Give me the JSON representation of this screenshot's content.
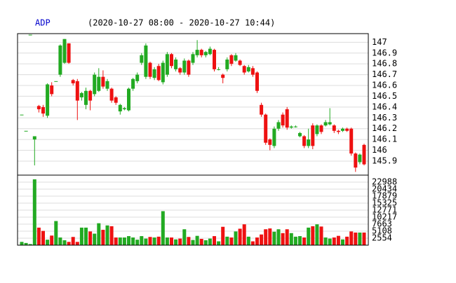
{
  "chart_data": {
    "type": "candlestick",
    "title": "ADP",
    "subtitle": "(2020-10-27 08:00 - 2020-10-27 10:44)",
    "open": [
      146.33,
      146.18,
      147.07,
      146.1,
      146.41,
      146.4,
      146.32,
      146.6,
      146.64,
      146.7,
      146.81,
      146.99,
      146.65,
      146.64,
      146.49,
      146.42,
      146.55,
      146.52,
      146.55,
      146.68,
      146.57,
      146.57,
      146.49,
      146.36,
      146.38,
      146.37,
      146.57,
      146.64,
      146.81,
      146.68,
      146.81,
      146.67,
      146.78,
      146.63,
      146.7,
      146.89,
      146.75,
      146.76,
      146.72,
      146.83,
      146.81,
      146.88,
      146.93,
      146.88,
      146.89,
      146.93,
      146.75,
      146.7,
      146.75,
      146.88,
      146.83,
      146.83,
      146.78,
      146.73,
      146.76,
      146.72,
      146.42,
      146.33,
      146.1,
      146.04,
      146.2,
      146.33,
      146.38,
      146.21,
      146.22,
      146.13,
      146.13,
      146.04,
      146.23,
      146.15,
      146.23,
      146.23,
      146.24,
      146.23,
      146.18,
      146.18,
      146.2,
      146.2,
      145.97,
      145.89,
      146.05
    ],
    "high": [
      146.33,
      146.18,
      147.07,
      146.13,
      146.42,
      146.42,
      146.62,
      146.63,
      146.64,
      146.98,
      147.03,
      146.99,
      146.66,
      146.66,
      146.54,
      146.58,
      146.56,
      146.72,
      146.76,
      146.74,
      146.66,
      146.58,
      146.5,
      146.43,
      146.4,
      146.58,
      146.67,
      146.72,
      146.9,
      146.99,
      146.82,
      146.77,
      146.8,
      146.83,
      146.91,
      146.9,
      146.86,
      146.77,
      146.85,
      146.84,
      146.91,
      147.02,
      146.94,
      146.92,
      146.96,
      146.94,
      146.77,
      146.71,
      146.86,
      146.89,
      146.9,
      146.84,
      146.79,
      146.79,
      146.78,
      146.73,
      146.44,
      146.34,
      146.11,
      146.22,
      146.28,
      146.35,
      146.4,
      146.23,
      146.23,
      146.17,
      146.14,
      146.2,
      146.25,
      146.24,
      146.24,
      146.28,
      146.39,
      146.24,
      146.19,
      146.21,
      146.21,
      146.21,
      145.98,
      145.97,
      146.06
    ],
    "low": [
      146.33,
      146.18,
      147.07,
      145.86,
      146.35,
      146.31,
      146.3,
      146.5,
      146.64,
      146.68,
      146.8,
      146.8,
      146.6,
      146.28,
      146.46,
      146.38,
      146.37,
      146.5,
      146.54,
      146.57,
      146.55,
      146.44,
      146.42,
      146.33,
      146.37,
      146.36,
      146.55,
      146.62,
      146.79,
      146.66,
      146.66,
      146.65,
      146.64,
      146.61,
      146.68,
      146.76,
      146.73,
      146.7,
      146.7,
      146.68,
      146.79,
      146.86,
      146.86,
      146.86,
      146.88,
      146.73,
      146.74,
      146.62,
      146.73,
      146.78,
      146.82,
      146.78,
      146.7,
      146.72,
      146.68,
      146.53,
      146.31,
      146.05,
      146.0,
      146.02,
      146.18,
      146.21,
      146.19,
      146.2,
      146.21,
      146.12,
      146.02,
      146.02,
      146.01,
      146.13,
      146.15,
      146.22,
      146.23,
      146.16,
      146.15,
      146.17,
      146.17,
      145.95,
      145.8,
      145.87,
      145.86
    ],
    "close": [
      146.33,
      146.18,
      147.07,
      146.13,
      146.38,
      146.34,
      146.61,
      146.52,
      146.64,
      146.97,
      147.03,
      146.81,
      146.62,
      146.46,
      146.53,
      146.55,
      146.46,
      146.7,
      146.68,
      146.59,
      146.64,
      146.46,
      146.44,
      146.42,
      146.39,
      146.57,
      146.66,
      146.7,
      146.88,
      146.97,
      146.68,
      146.75,
      146.65,
      146.81,
      146.89,
      146.78,
      146.84,
      146.72,
      146.83,
      146.7,
      146.89,
      146.93,
      146.88,
      146.91,
      146.94,
      146.75,
      146.75,
      146.67,
      146.84,
      146.8,
      146.88,
      146.79,
      146.72,
      146.77,
      146.7,
      146.55,
      146.33,
      146.07,
      146.05,
      146.2,
      146.26,
      146.23,
      146.21,
      146.22,
      146.22,
      146.16,
      146.04,
      146.1,
      146.04,
      146.23,
      146.17,
      146.26,
      146.26,
      146.18,
      146.17,
      146.2,
      146.18,
      145.97,
      145.84,
      145.96,
      145.87
    ],
    "volume": [
      1200,
      800,
      400,
      24000,
      6400,
      5200,
      2000,
      3500,
      8800,
      2800,
      1800,
      1200,
      3000,
      1200,
      6400,
      6400,
      5000,
      4200,
      8000,
      5600,
      7200,
      6900,
      2800,
      2800,
      2800,
      3300,
      2800,
      2000,
      3300,
      2400,
      3000,
      2800,
      3100,
      12400,
      2800,
      2800,
      2100,
      2400,
      5800,
      3000,
      1900,
      3400,
      2300,
      1800,
      2400,
      3300,
      1400,
      6700,
      3100,
      2800,
      5000,
      6000,
      7600,
      3100,
      1400,
      2800,
      3900,
      5800,
      6100,
      4900,
      5800,
      4400,
      5800,
      4400,
      3100,
      3300,
      2800,
      6400,
      6900,
      7600,
      6800,
      2800,
      2400,
      2800,
      3400,
      2100,
      3100,
      5000,
      4600,
      4600,
      4600
    ],
    "ylim": [
      145.77,
      147.08
    ],
    "yticks": [
      145.9,
      146,
      146.1,
      146.2,
      146.3,
      146.4,
      146.5,
      146.6,
      146.7,
      146.8,
      146.9,
      147
    ],
    "volume_ylim": [
      0,
      25540
    ],
    "volume_yticks": [
      2554,
      5108,
      7663,
      10217,
      12771,
      15325,
      17879,
      20434,
      22988
    ],
    "up_color": "#22aa22",
    "down_color": "#ee1111",
    "grid": true
  }
}
